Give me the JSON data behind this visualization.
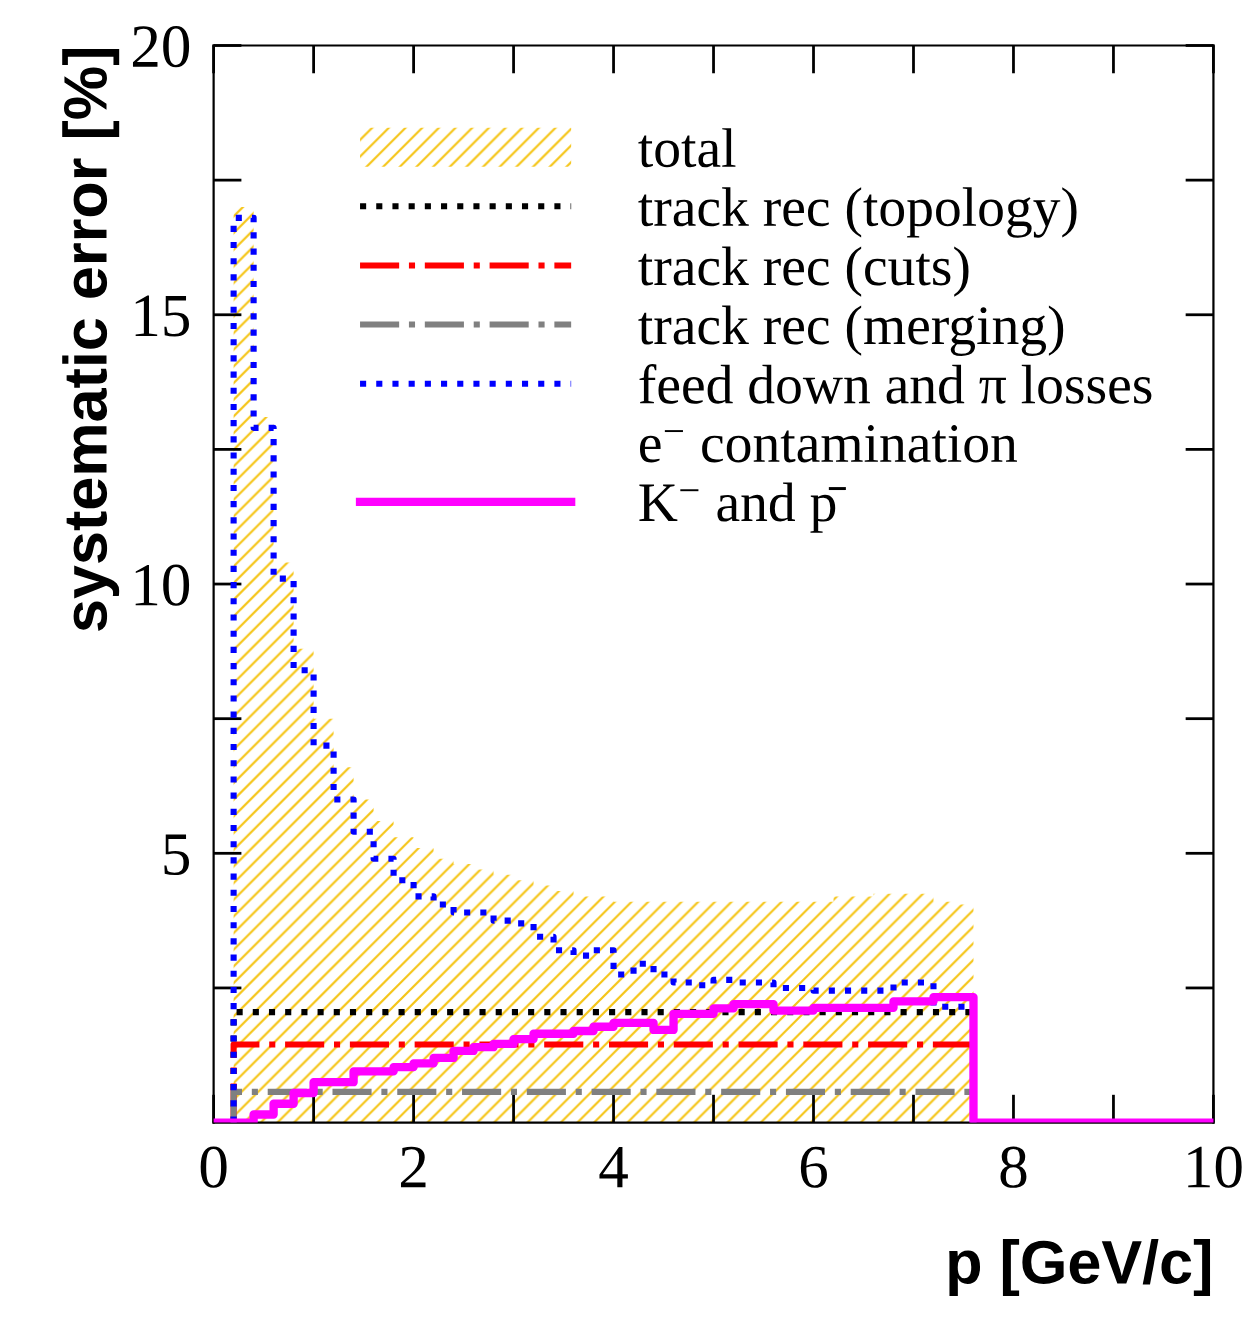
{
  "chart_data": {
    "type": "step",
    "xlabel": "p [GeV/c]",
    "ylabel": "systematic error [%]",
    "xlim": [
      0,
      10
    ],
    "ylim": [
      0,
      20
    ],
    "xticks": [
      0,
      {
        "value": 1,
        "label": null
      },
      2,
      {
        "value": 3,
        "label": null
      },
      4,
      {
        "value": 5,
        "label": null
      },
      6,
      {
        "value": 7,
        "label": null
      },
      8,
      {
        "value": 9,
        "label": null
      },
      10
    ],
    "yticks": [
      {
        "value": 2.5,
        "label": null
      },
      5,
      {
        "value": 7.5,
        "label": null
      },
      10,
      {
        "value": 12.5,
        "label": null
      },
      15,
      {
        "value": 17.5,
        "label": null
      },
      20
    ],
    "legend": "top right",
    "grid": false,
    "series": [
      {
        "name": "total",
        "type": "area",
        "color": "#f5c518",
        "x": [
          0.2,
          0.4,
          0.6,
          0.8,
          1.0,
          1.2,
          1.4,
          1.6,
          1.8,
          2.0,
          2.2,
          2.4,
          2.6,
          2.8,
          3.0,
          3.2,
          3.4,
          3.6,
          3.8,
          4.0,
          4.2,
          4.4,
          4.6,
          4.8,
          5.0,
          5.2,
          5.4,
          5.6,
          5.8,
          6.0,
          6.2,
          6.4,
          6.6,
          6.8,
          7.0,
          7.2,
          7.4,
          7.6
        ],
        "values": [
          17.0,
          13.1,
          10.4,
          8.8,
          7.5,
          6.6,
          6.0,
          5.6,
          5.3,
          5.1,
          4.9,
          4.8,
          4.7,
          4.6,
          4.5,
          4.4,
          4.3,
          4.2,
          4.2,
          4.1,
          4.1,
          4.1,
          4.1,
          4.1,
          4.1,
          4.1,
          4.1,
          4.1,
          4.1,
          4.1,
          4.2,
          4.2,
          4.25,
          4.25,
          4.25,
          4.1,
          4.05,
          0
        ]
      },
      {
        "name": "track rec (topology)",
        "color": "#000000",
        "line_style": "dotted",
        "x": [
          0.2,
          0.2,
          7.6
        ],
        "values": [
          0,
          2.05,
          0
        ]
      },
      {
        "name": "track rec (cuts)",
        "color": "#ff0000",
        "line_style": "dashdot",
        "x": [
          0.2,
          0.2,
          7.6
        ],
        "values": [
          0,
          1.45,
          0
        ]
      },
      {
        "name": "track rec (merging)",
        "color": "#808080",
        "line_style": "dashdot",
        "x": [
          0.2,
          0.2,
          7.6
        ],
        "values": [
          0,
          0.57,
          0
        ]
      },
      {
        "name": "feed down and π losses",
        "color": "#0000ff",
        "line_style": "dotted",
        "x": [
          0.2,
          0.2,
          0.4,
          0.6,
          0.8,
          1.0,
          1.2,
          1.4,
          1.6,
          1.8,
          2.0,
          2.2,
          2.4,
          2.6,
          2.8,
          3.0,
          3.2,
          3.4,
          3.6,
          3.8,
          4.0,
          4.2,
          4.4,
          4.6,
          4.8,
          5.0,
          5.2,
          5.4,
          5.6,
          5.8,
          6.0,
          6.2,
          6.4,
          6.6,
          6.8,
          7.0,
          7.2,
          7.4,
          7.6
        ],
        "values": [
          0,
          16.8,
          12.9,
          10.1,
          8.4,
          7.0,
          6.0,
          5.4,
          4.9,
          4.5,
          4.2,
          4.05,
          3.9,
          3.9,
          3.75,
          3.7,
          3.45,
          3.2,
          3.1,
          3.2,
          2.75,
          2.95,
          2.75,
          2.6,
          2.55,
          2.65,
          2.6,
          2.6,
          2.5,
          2.5,
          2.45,
          2.45,
          2.45,
          2.45,
          2.6,
          2.6,
          2.15,
          2.15,
          0
        ]
      },
      {
        "name": "e$^{−}$ contamination"
      },
      {
        "name": "K$^{−}$ and p̄",
        "color": "#ff00ff",
        "line_style": "solid",
        "x": [
          0,
          0.2,
          0.4,
          0.6,
          0.8,
          1.0,
          1.2,
          1.4,
          1.6,
          1.8,
          2.0,
          2.2,
          2.4,
          2.6,
          2.8,
          3.0,
          3.2,
          3.4,
          3.6,
          3.8,
          4.0,
          4.2,
          4.4,
          4.6,
          4.8,
          5.0,
          5.2,
          5.4,
          5.6,
          5.8,
          6.0,
          6.2,
          6.4,
          6.6,
          6.8,
          7.0,
          7.2,
          7.4,
          7.6,
          7.8,
          8.0,
          8.2,
          8.4,
          8.6,
          8.8,
          9.0,
          9.2,
          9.4,
          9.6,
          9.8,
          10.0
        ],
        "values": [
          0,
          0,
          0.15,
          0.35,
          0.55,
          0.75,
          0.75,
          0.95,
          0.95,
          1.03,
          1.1,
          1.2,
          1.33,
          1.4,
          1.46,
          1.55,
          1.65,
          1.65,
          1.7,
          1.78,
          1.85,
          1.85,
          1.72,
          2.02,
          2.02,
          2.12,
          2.2,
          2.2,
          2.08,
          2.08,
          2.13,
          2.13,
          2.13,
          2.13,
          2.25,
          2.25,
          2.33,
          2.33,
          0,
          0,
          0,
          0,
          0,
          0,
          0,
          0,
          0,
          0,
          0,
          0,
          0
        ]
      }
    ]
  }
}
